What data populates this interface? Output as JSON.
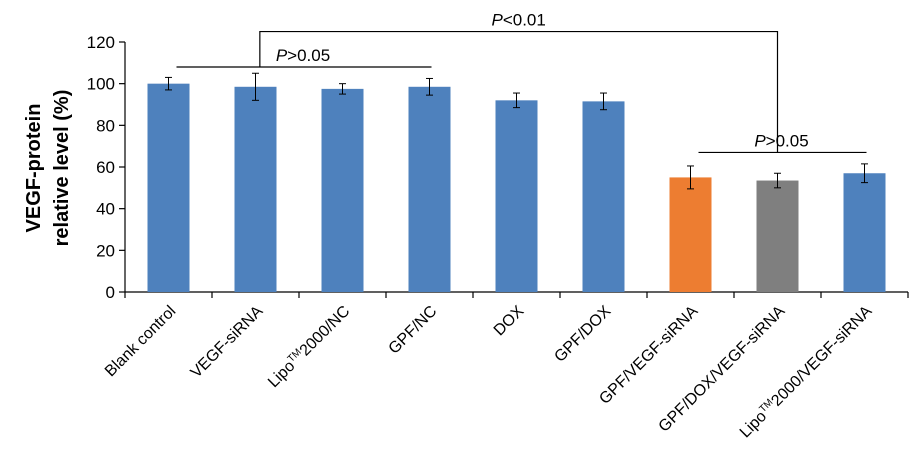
{
  "chart_data": {
    "type": "bar",
    "ylabel_lines": [
      "VEGF-protein",
      "relative level (%)"
    ],
    "xlabel": "",
    "ylim": [
      0,
      120
    ],
    "yticks": [
      0,
      20,
      40,
      60,
      80,
      100,
      120
    ],
    "grid": false,
    "legend": "none",
    "categories": [
      {
        "label": "Blank control",
        "parts": [
          "Blank control"
        ]
      },
      {
        "label": "VEGF-siRNA",
        "parts": [
          "VEGF-siRNA"
        ]
      },
      {
        "label": "Lipo™2000/NC",
        "parts": [
          "Lipo",
          "TM",
          "2000/NC"
        ]
      },
      {
        "label": "GPF/NC",
        "parts": [
          "GPF/NC"
        ]
      },
      {
        "label": "DOX",
        "parts": [
          "DOX"
        ]
      },
      {
        "label": "GPF/DOX",
        "parts": [
          "GPF/DOX"
        ]
      },
      {
        "label": "GPF/VEGF-siRNA",
        "parts": [
          "GPF/VEGF-siRNA"
        ]
      },
      {
        "label": "GPF/DOX/VEGF-siRNA",
        "parts": [
          "GPF/DOX/VEGF-siRNA"
        ]
      },
      {
        "label": "Lipo™2000/VEGF-siRNA",
        "parts": [
          "Lipo",
          "TM",
          "2000/VEGF-siRNA"
        ]
      }
    ],
    "values": [
      100,
      98.5,
      97.5,
      98.5,
      92,
      91.5,
      55,
      53.5,
      57
    ],
    "errors": [
      3,
      6.5,
      2.5,
      4,
      3.5,
      4,
      5.5,
      3.5,
      4.5
    ],
    "colors": [
      "#4e81bd",
      "#4e81bd",
      "#4e81bd",
      "#4e81bd",
      "#4e81bd",
      "#4e81bd",
      "#ed7d31",
      "#7f7f7f",
      "#4e81bd"
    ],
    "annotations": [
      {
        "p": "P",
        "text": ">0.05",
        "from": 0,
        "to": 3,
        "y": 108,
        "type": "line"
      },
      {
        "p": "P",
        "text": ">0.05",
        "from": 6,
        "to": 8,
        "y": 67,
        "type": "line"
      },
      {
        "p": "P",
        "text": "<0.01",
        "from": 1.55,
        "to": 7,
        "y": 125,
        "type": "bracket"
      }
    ]
  }
}
